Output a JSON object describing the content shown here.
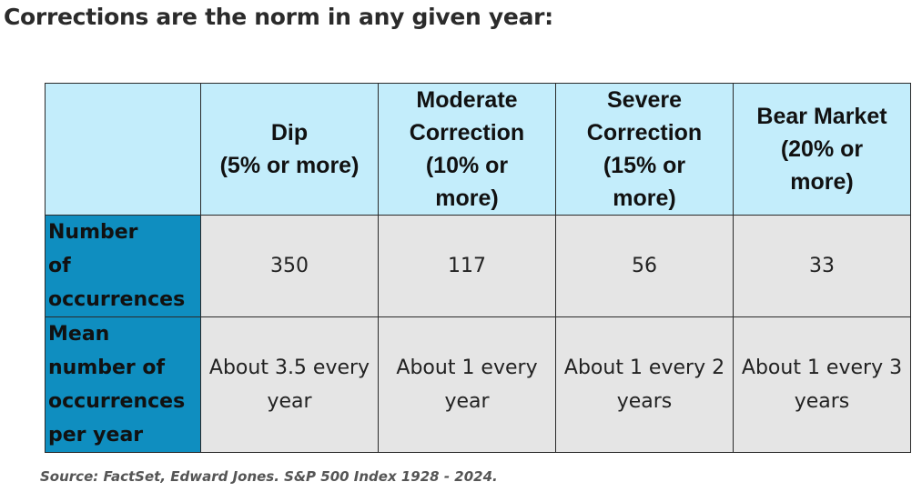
{
  "heading": "Corrections are the norm in any given year:",
  "table": {
    "corner": "",
    "columns": [
      "Dip\n(5% or more)",
      "Moderate\nCorrection\n(10% or\nmore)",
      "Severe\nCorrection\n(15% or\nmore)",
      "Bear Market\n(20% or\nmore)"
    ],
    "rows": [
      {
        "label": "Number\nof\noccurrences",
        "cells": [
          "350",
          "117",
          "56",
          "33"
        ]
      },
      {
        "label": "Mean\nnumber of\noccurrences\nper year",
        "cells": [
          "About 3.5 every\nyear",
          "About 1 every\nyear",
          "About 1 every 2\nyears",
          "About 1 every 3\nyears"
        ]
      }
    ]
  },
  "source": "Source: FactSet, Edward Jones. S&P 500 Index 1928 - 2024.",
  "colors": {
    "header_background": "#c3edfb",
    "row_label_background": "#0f8ec0",
    "cell_background": "#e5e5e5",
    "border": "#2a2a2a"
  }
}
